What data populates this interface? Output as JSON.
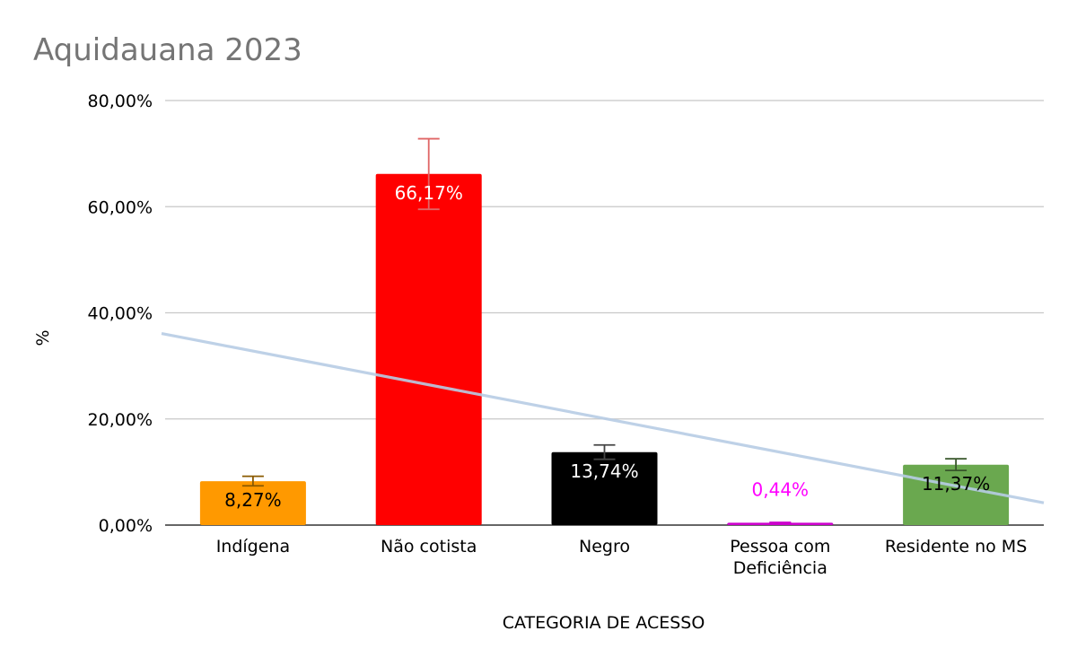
{
  "chart_data": {
    "type": "bar",
    "title": "Aquidauana 2023",
    "xlabel": "CATEGORIA DE ACESSO",
    "ylabel": "%",
    "ylim": [
      0,
      80
    ],
    "yticks": [
      0,
      20,
      40,
      60,
      80
    ],
    "ytick_labels": [
      "0,00%",
      "20,00%",
      "40,00%",
      "60,00%",
      "80,00%"
    ],
    "grid": true,
    "categories": [
      "Indígena",
      "Não cotista",
      "Negro",
      "Pessoa com Deficiência",
      "Residente no MS"
    ],
    "category_lines": [
      [
        "Indígena"
      ],
      [
        "Não cotista"
      ],
      [
        "Negro"
      ],
      [
        "Pessoa com",
        "Deficiência"
      ],
      [
        "Residente no MS"
      ]
    ],
    "values": [
      8.27,
      66.17,
      13.74,
      0.44,
      11.37
    ],
    "value_labels": [
      "8,27%",
      "66,17%",
      "13,74%",
      "0,44%",
      "11,37%"
    ],
    "bar_colors": [
      "#FF9900",
      "#FF0000",
      "#000000",
      "#CC00CC",
      "#6AA84F"
    ],
    "label_colors": [
      "#000000",
      "#FFFFFF",
      "#FFFFFF",
      "#FF00FF",
      "#000000"
    ],
    "error_colors": [
      "#8A5A00",
      "#E06666",
      "#444444",
      "#CC00CC",
      "#38572B"
    ],
    "error_bars": [
      {
        "low": 7.4,
        "high": 9.2
      },
      {
        "low": 59.5,
        "high": 72.8
      },
      {
        "low": 12.4,
        "high": 15.1
      },
      {
        "low": 0.4,
        "high": 0.5
      },
      {
        "low": 10.3,
        "high": 12.5
      }
    ],
    "trendline": {
      "type": "linear",
      "color": "#B7CCE4",
      "start_value": 36.1,
      "end_value": 4.2
    }
  }
}
